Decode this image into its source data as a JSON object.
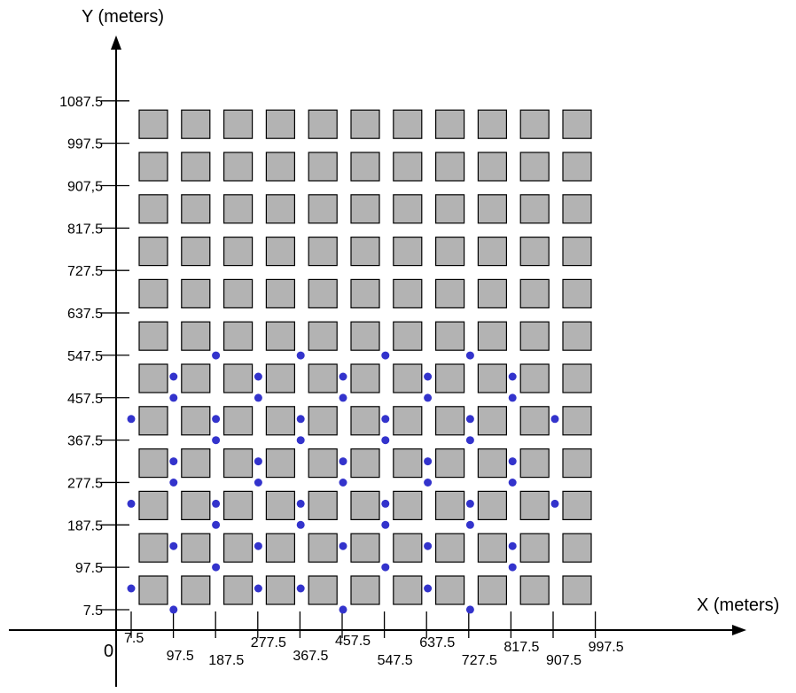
{
  "chart_data": {
    "type": "scatter",
    "x_axis_title": "X (meters)",
    "y_axis_title": "Y (meters)",
    "origin_label": "0",
    "x_tick_labels": [
      "7.5",
      "97.5",
      "187.5",
      "277.5",
      "367.5",
      "457.5",
      "547.5",
      "637.5",
      "727.5",
      "817.5",
      "907.5",
      "997.5"
    ],
    "y_tick_labels": [
      "7.5",
      "97.5",
      "187.5",
      "277.5",
      "367.5",
      "457.5",
      "547.5",
      "637.5",
      "727.5",
      "817.5",
      "907,5",
      "997.5",
      "1087.5"
    ],
    "grid": {
      "columns": 11,
      "rows": 12,
      "block_color": "#b3b3b3",
      "block_border": "#000000"
    },
    "marker_color": "#3333cc",
    "markers": [
      {
        "x": 0,
        "y": 0
      },
      {
        "x": 1,
        "y": -1
      },
      {
        "x": 2,
        "y": 1
      },
      {
        "x": 3,
        "y": 0
      },
      {
        "x": 4,
        "y": 0
      },
      {
        "x": 5,
        "y": -1
      },
      {
        "x": 6,
        "y": 1
      },
      {
        "x": 7,
        "y": 0
      },
      {
        "x": 8,
        "y": -1
      },
      {
        "x": 9,
        "y": 1
      },
      {
        "x": 1,
        "y": 2
      },
      {
        "x": 2,
        "y": 3
      },
      {
        "x": 3,
        "y": 2
      },
      {
        "x": 4,
        "y": 3
      },
      {
        "x": 5,
        "y": 2
      },
      {
        "x": 6,
        "y": 3
      },
      {
        "x": 7,
        "y": 2
      },
      {
        "x": 8,
        "y": 3
      },
      {
        "x": 9,
        "y": 2
      },
      {
        "x": 0,
        "y": 4
      },
      {
        "x": 1,
        "y": 5
      },
      {
        "x": 2,
        "y": 4
      },
      {
        "x": 3,
        "y": 5
      },
      {
        "x": 4,
        "y": 4
      },
      {
        "x": 5,
        "y": 5
      },
      {
        "x": 6,
        "y": 4
      },
      {
        "x": 7,
        "y": 5
      },
      {
        "x": 8,
        "y": 4
      },
      {
        "x": 9,
        "y": 5
      },
      {
        "x": 10,
        "y": 4
      },
      {
        "x": 1,
        "y": 6
      },
      {
        "x": 2,
        "y": 7
      },
      {
        "x": 3,
        "y": 6
      },
      {
        "x": 4,
        "y": 7
      },
      {
        "x": 5,
        "y": 6
      },
      {
        "x": 6,
        "y": 7
      },
      {
        "x": 7,
        "y": 6
      },
      {
        "x": 8,
        "y": 7
      },
      {
        "x": 9,
        "y": 6
      },
      {
        "x": 0,
        "y": 8
      },
      {
        "x": 1,
        "y": 9
      },
      {
        "x": 2,
        "y": 8
      },
      {
        "x": 3,
        "y": 9
      },
      {
        "x": 4,
        "y": 8
      },
      {
        "x": 5,
        "y": 9
      },
      {
        "x": 6,
        "y": 8
      },
      {
        "x": 7,
        "y": 9
      },
      {
        "x": 8,
        "y": 8
      },
      {
        "x": 9,
        "y": 9
      },
      {
        "x": 10,
        "y": 8
      },
      {
        "x": 1,
        "y": 10
      },
      {
        "x": 2,
        "y": 11
      },
      {
        "x": 3,
        "y": 10
      },
      {
        "x": 4,
        "y": 11
      },
      {
        "x": 5,
        "y": 10
      },
      {
        "x": 6,
        "y": 11
      },
      {
        "x": 7,
        "y": 10
      },
      {
        "x": 8,
        "y": 11
      },
      {
        "x": 9,
        "y": 10
      }
    ]
  }
}
